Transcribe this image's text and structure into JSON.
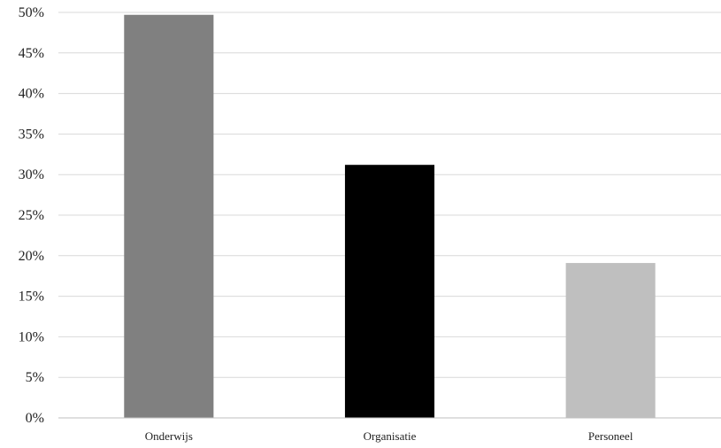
{
  "chart_data": {
    "type": "bar",
    "title": "",
    "xlabel": "",
    "ylabel": "",
    "categories": [
      "Onderwijs",
      "Organisatie",
      "Personeel"
    ],
    "values": [
      49.7,
      31.2,
      19.1
    ],
    "bar_colors": [
      "#808080",
      "#000000",
      "#bfbfbf"
    ],
    "ylim": [
      0,
      50
    ],
    "ytick_values": [
      0,
      5,
      10,
      15,
      20,
      25,
      30,
      35,
      40,
      45,
      50
    ],
    "ytick_labels": [
      "0%",
      "5%",
      "10%",
      "15%",
      "20%",
      "25%",
      "30%",
      "35%",
      "40%",
      "45%",
      "50%"
    ],
    "grid": true,
    "legend": "none"
  }
}
